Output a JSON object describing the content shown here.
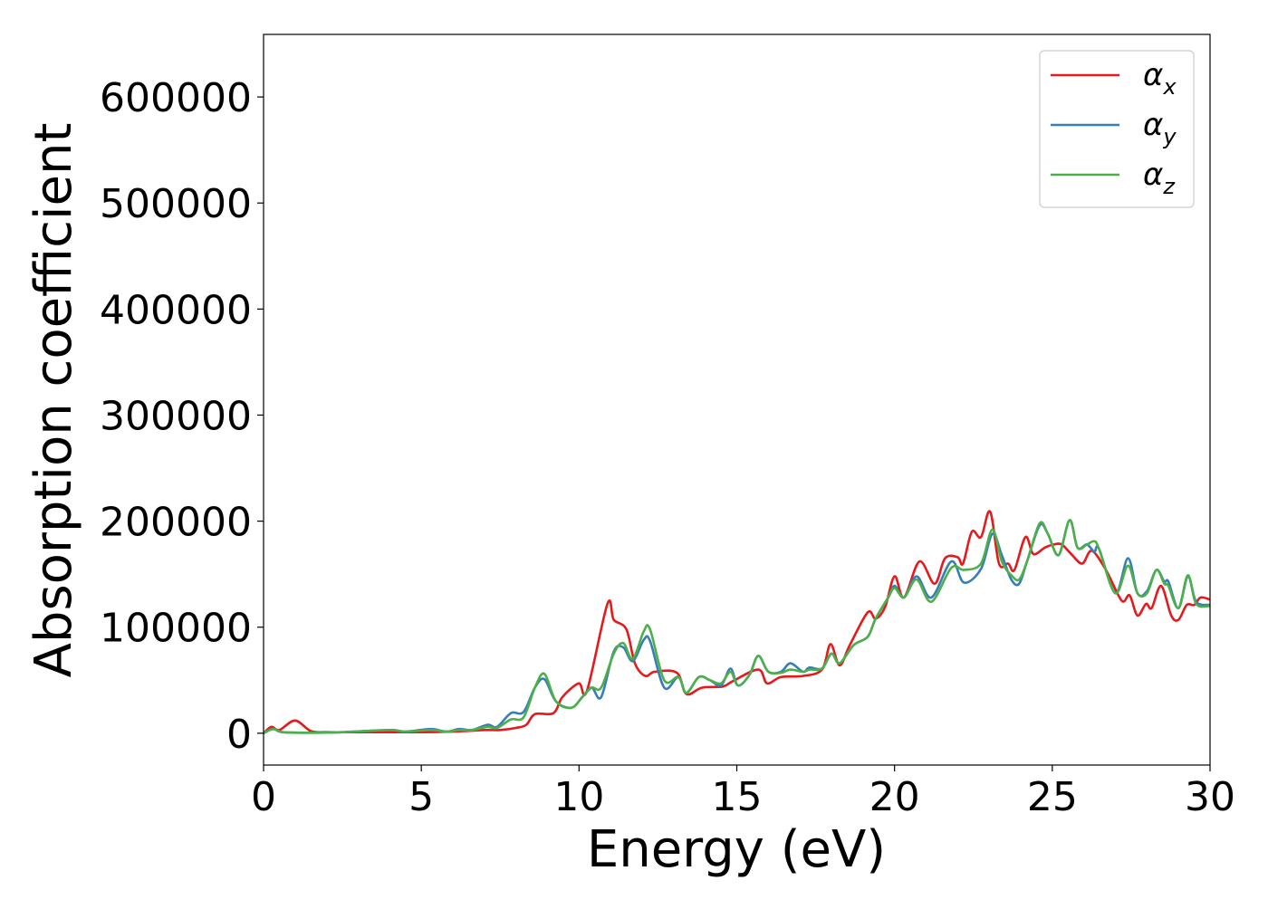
{
  "chart_data": {
    "type": "line",
    "title": "",
    "xlabel": "Energy (eV)",
    "ylabel": "Absorption coefficient",
    "xlim": [
      0,
      30
    ],
    "ylim": [
      -30000,
      659000
    ],
    "xticks": [
      0,
      5,
      10,
      15,
      20,
      25,
      30
    ],
    "xtick_labels": [
      "0",
      "5",
      "10",
      "15",
      "20",
      "25",
      "30"
    ],
    "yticks": [
      0,
      100000,
      200000,
      300000,
      400000,
      500000,
      600000
    ],
    "ytick_labels": [
      "0",
      "100000",
      "200000",
      "300000",
      "400000",
      "500000",
      "600000"
    ],
    "grid": false,
    "legend_position": "top-right",
    "series": [
      {
        "name": "α",
        "subscript": "x",
        "color": "#e41a1c",
        "x": [
          0,
          0.25,
          0.5,
          1.0,
          1.5,
          2,
          3,
          4,
          5,
          6,
          7,
          7.5,
          8,
          8.33,
          8.6,
          9.19,
          9.47,
          9.99,
          10.25,
          10.9,
          11.1,
          11.5,
          11.77,
          12.1,
          12.4,
          13.1,
          13.4,
          13.9,
          14.55,
          14.87,
          15.68,
          15.96,
          16.4,
          17.1,
          17.7,
          17.97,
          18.26,
          18.58,
          19.15,
          19.4,
          19.7,
          20.0,
          20.3,
          20.79,
          21.27,
          21.6,
          22.0,
          22.17,
          22.45,
          22.74,
          23.03,
          23.31,
          23.6,
          23.8,
          24.15,
          24.4,
          24.76,
          25.05,
          25.3,
          25.6,
          25.95,
          26.25,
          26.7,
          27.2,
          27.45,
          27.7,
          27.97,
          28.15,
          28.45,
          28.77,
          29.0,
          29.26,
          29.5,
          29.7,
          30
        ],
        "y": [
          0,
          6000,
          3000,
          12000,
          2000,
          1000,
          1000,
          1000,
          1000,
          1500,
          3000,
          3000,
          5000,
          8000,
          18000,
          19000,
          34000,
          47000,
          40000,
          122000,
          107000,
          98000,
          66000,
          54000,
          58000,
          57000,
          37000,
          43000,
          44000,
          49000,
          60000,
          47000,
          53000,
          54000,
          60000,
          84000,
          64000,
          83000,
          114000,
          108000,
          119000,
          148000,
          128000,
          162000,
          141000,
          165000,
          166000,
          160000,
          190000,
          185000,
          209000,
          160000,
          160000,
          154000,
          185000,
          169000,
          175000,
          178000,
          178000,
          169000,
          160000,
          172000,
          154000,
          125000,
          130000,
          111000,
          122000,
          118000,
          139000,
          111000,
          107000,
          121000,
          121000,
          128000,
          126000
        ]
      },
      {
        "name": "α",
        "subscript": "y",
        "color": "#377eb8",
        "x": [
          0,
          0.3,
          0.6,
          1.5,
          2.5,
          4,
          4.5,
          5.3,
          5.8,
          6.2,
          6.6,
          7.1,
          7.4,
          7.84,
          8.24,
          8.6,
          8.9,
          9.27,
          9.76,
          10.1,
          10.4,
          10.7,
          11.1,
          11.4,
          11.7,
          12.05,
          12.25,
          12.7,
          13.15,
          13.4,
          13.8,
          14.15,
          14.5,
          14.8,
          15.04,
          15.4,
          15.68,
          16.0,
          16.4,
          16.7,
          17.1,
          17.3,
          17.7,
          18.0,
          18.26,
          18.7,
          19.15,
          19.4,
          19.8,
          20.0,
          20.3,
          20.7,
          21.17,
          21.8,
          22.2,
          22.74,
          23.1,
          23.4,
          23.7,
          23.95,
          24.2,
          24.6,
          24.86,
          25.2,
          25.55,
          25.8,
          26.1,
          26.33,
          26.48,
          27.0,
          27.4,
          27.7,
          28.0,
          28.3,
          28.55,
          28.68,
          29.0,
          29.3,
          29.56,
          30
        ],
        "y": [
          0,
          4000,
          1000,
          500,
          1000,
          3000,
          1500,
          4000,
          1500,
          4000,
          3000,
          8000,
          6000,
          19000,
          20000,
          43000,
          51000,
          30000,
          24000,
          34000,
          43000,
          34000,
          77000,
          81000,
          68000,
          88000,
          87000,
          43000,
          53000,
          38000,
          53000,
          50000,
          45000,
          61000,
          45000,
          55000,
          73000,
          58000,
          58000,
          66000,
          58000,
          62000,
          61000,
          75000,
          66000,
          83000,
          91000,
          108000,
          128000,
          139000,
          128000,
          148000,
          128000,
          162000,
          142000,
          155000,
          188000,
          168000,
          145000,
          141000,
          162000,
          196000,
          188000,
          168000,
          201000,
          175000,
          178000,
          171000,
          174000,
          132000,
          165000,
          132000,
          134000,
          154000,
          143000,
          143000,
          118000,
          148000,
          124000,
          121000
        ]
      },
      {
        "name": "α",
        "subscript": "z",
        "color": "#4daf4a",
        "x": [
          0,
          0.3,
          0.6,
          1.5,
          2.5,
          4,
          4.5,
          5.3,
          5.8,
          6.2,
          6.6,
          7.1,
          7.4,
          7.84,
          8.24,
          8.6,
          8.9,
          9.27,
          9.76,
          10.1,
          10.4,
          10.7,
          11.1,
          11.4,
          11.7,
          12.05,
          12.25,
          12.7,
          13.15,
          13.4,
          13.8,
          14.15,
          14.5,
          14.8,
          15.04,
          15.4,
          15.68,
          16.0,
          16.4,
          16.7,
          17.1,
          17.3,
          17.7,
          18.0,
          18.26,
          18.7,
          19.15,
          19.4,
          19.8,
          20.0,
          20.3,
          20.7,
          21.17,
          21.8,
          22.2,
          22.74,
          23.1,
          23.4,
          23.7,
          23.95,
          24.2,
          24.6,
          24.86,
          25.2,
          25.55,
          25.8,
          26.1,
          26.33,
          26.48,
          27.0,
          27.4,
          27.7,
          28.0,
          28.3,
          28.55,
          28.68,
          29.0,
          29.3,
          29.56,
          30
        ],
        "y": [
          0,
          4000,
          1000,
          500,
          1000,
          3000,
          1500,
          3000,
          1500,
          3000,
          3000,
          6000,
          5000,
          13000,
          15000,
          43000,
          56000,
          30000,
          24000,
          34000,
          43000,
          43000,
          75000,
          85000,
          70000,
          96000,
          98000,
          50000,
          53000,
          38000,
          53000,
          50000,
          47000,
          58000,
          45000,
          55000,
          73000,
          58000,
          57000,
          60000,
          58000,
          60000,
          61000,
          75000,
          66000,
          83000,
          91000,
          108000,
          128000,
          137000,
          128000,
          145000,
          124000,
          156000,
          154000,
          160000,
          192000,
          162000,
          149000,
          145000,
          162000,
          198000,
          188000,
          168000,
          201000,
          175000,
          178000,
          181000,
          174000,
          132000,
          158000,
          132000,
          132000,
          154000,
          141000,
          139000,
          118000,
          149000,
          122000,
          120000
        ]
      }
    ]
  }
}
